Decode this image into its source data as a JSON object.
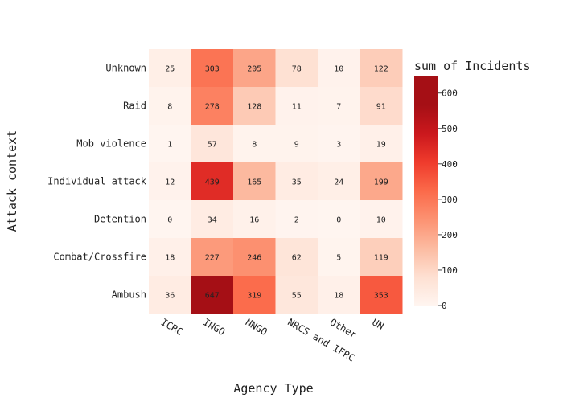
{
  "chart_data": {
    "type": "heatmap",
    "xlabel": "Agency Type",
    "ylabel": "Attack context",
    "x_categories": [
      "ICRC",
      "INGO",
      "NNGO",
      "NRCS and IFRC",
      "Other",
      "UN"
    ],
    "y_categories": [
      "Unknown",
      "Raid",
      "Mob violence",
      "Individual attack",
      "Detention",
      "Combat/Crossfire",
      "Ambush"
    ],
    "values": [
      [
        25,
        303,
        205,
        78,
        10,
        122
      ],
      [
        8,
        278,
        128,
        11,
        7,
        91
      ],
      [
        1,
        57,
        8,
        9,
        3,
        19
      ],
      [
        12,
        439,
        165,
        35,
        24,
        199
      ],
      [
        0,
        34,
        16,
        2,
        0,
        10
      ],
      [
        18,
        227,
        246,
        62,
        5,
        119
      ],
      [
        36,
        647,
        319,
        55,
        18,
        353
      ]
    ],
    "colorbar": {
      "title": "sum of Incidents",
      "ticks": [
        0,
        100,
        200,
        300,
        400,
        500,
        600
      ],
      "range": [
        0,
        647
      ],
      "colorscale": "Reds"
    }
  }
}
